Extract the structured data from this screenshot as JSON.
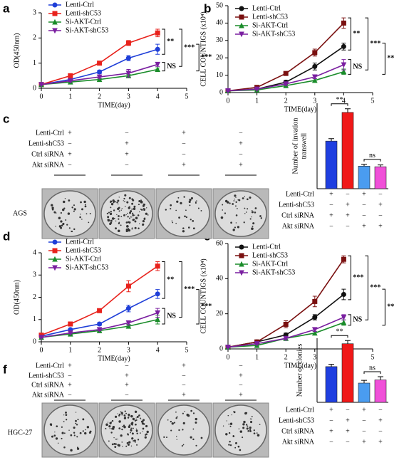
{
  "panel_labels": [
    "a",
    "b",
    "c",
    "d",
    "e",
    "f"
  ],
  "photo_panels": [
    {
      "cell_line": "AGS",
      "rows": [
        "Lenti-Ctrl",
        "Lenti-shC53",
        "Ctrl siRNA",
        "Akt siRNA"
      ],
      "signs": [
        [
          "+",
          "−",
          "+",
          "−"
        ],
        [
          "−",
          "+",
          "−",
          "+"
        ],
        [
          "+",
          "+",
          "−",
          "−"
        ],
        [
          "−",
          "−",
          "+",
          "+"
        ]
      ]
    },
    {
      "cell_line": "HGC-27",
      "rows": [
        "Lenti-Ctrl",
        "Lenti-shC53",
        "Ctrl siRNA",
        "Akt siRNA"
      ],
      "signs": [
        [
          "+",
          "−",
          "+",
          "−"
        ],
        [
          "−",
          "+",
          "−",
          "+"
        ],
        [
          "+",
          "+",
          "−",
          "−"
        ],
        [
          "−",
          "−",
          "+",
          "+"
        ]
      ]
    }
  ],
  "chart_data": [
    {
      "type": "line",
      "xlabel": "TIME(day)",
      "ylabel": "OD(450nm)",
      "x": [
        0,
        1,
        2,
        3,
        4
      ],
      "xlim": [
        0,
        5
      ],
      "xticks": [
        0,
        1,
        2,
        3,
        4,
        5
      ],
      "ylim": [
        0,
        3
      ],
      "yticks": [
        0,
        1,
        2,
        3
      ],
      "series": [
        {
          "name": "Lenti-Ctrl",
          "color": "#1f3fd8",
          "marker": "circle",
          "values": [
            0.15,
            0.35,
            0.65,
            1.2,
            1.55
          ],
          "errors": [
            0.03,
            0.05,
            0.07,
            0.1,
            0.2
          ]
        },
        {
          "name": "Lenti-shC53",
          "color": "#e8221c",
          "marker": "square",
          "values": [
            0.15,
            0.5,
            1.0,
            1.8,
            2.2
          ],
          "errors": [
            0.03,
            0.05,
            0.06,
            0.1,
            0.15
          ]
        },
        {
          "name": "Si-AKT-Ctrl",
          "color": "#1a8c2a",
          "marker": "triangle",
          "values": [
            0.15,
            0.25,
            0.35,
            0.5,
            0.75
          ],
          "errors": [
            0.02,
            0.03,
            0.04,
            0.05,
            0.06
          ]
        },
        {
          "name": "Si-AKT-shC53",
          "color": "#7a1fa0",
          "marker": "triangle-down",
          "values": [
            0.15,
            0.3,
            0.45,
            0.6,
            0.95
          ],
          "errors": [
            0.02,
            0.04,
            0.05,
            0.15,
            0.08
          ]
        }
      ],
      "annotations": [
        "**",
        "***",
        "NS",
        "***"
      ]
    },
    {
      "type": "line",
      "xlabel": "TIME(day)",
      "ylabel": "CELL COUNTIGS (x10⁴)",
      "x": [
        0,
        1,
        2,
        3,
        4
      ],
      "xlim": [
        0,
        5
      ],
      "xticks": [
        0,
        1,
        2,
        3,
        4,
        5
      ],
      "ylim": [
        0,
        50
      ],
      "yticks": [
        0,
        10,
        20,
        30,
        40,
        50
      ],
      "series": [
        {
          "name": "Lenti-Ctrl",
          "color": "#111111",
          "marker": "circle",
          "values": [
            1,
            2,
            6,
            15,
            26.5
          ],
          "errors": [
            0.3,
            0.5,
            1,
            2,
            2
          ]
        },
        {
          "name": "Lenti-shC53",
          "color": "#7a1010",
          "marker": "square",
          "values": [
            1,
            3,
            11,
            23,
            40
          ],
          "errors": [
            0.3,
            0.5,
            1,
            2,
            3
          ]
        },
        {
          "name": "Si-AKT-Ctrl",
          "color": "#1a8c2a",
          "marker": "triangle",
          "values": [
            1,
            1.5,
            4,
            7,
            12
          ],
          "errors": [
            0.3,
            0.4,
            0.6,
            1,
            1.5
          ]
        },
        {
          "name": "Si-AKT-shC53",
          "color": "#7a1fa0",
          "marker": "triangle-down",
          "values": [
            1,
            2,
            5,
            9,
            16
          ],
          "errors": [
            0.3,
            0.4,
            0.8,
            1,
            3
          ]
        }
      ],
      "annotations": [
        "**",
        "***",
        "NS",
        "**"
      ]
    },
    {
      "type": "bar",
      "ylabel": [
        "Number of invation",
        "transwell"
      ],
      "ylim": [
        0,
        140
      ],
      "values": [
        78,
        125,
        37,
        36
      ],
      "errors": [
        4,
        6,
        3,
        3
      ],
      "colors": [
        "#1f3fe0",
        "#f01818",
        "#4a9cf0",
        "#f050d8"
      ],
      "rows": [
        "Lenti-Ctrl",
        "Lenti-shC53",
        "Ctrl siRNA",
        "Akt siRNA"
      ],
      "signs": [
        [
          "+",
          "−",
          "+",
          "−"
        ],
        [
          "−",
          "+",
          "−",
          "+"
        ],
        [
          "+",
          "+",
          "−",
          "−"
        ],
        [
          "−",
          "−",
          "+",
          "+"
        ]
      ],
      "annotations": [
        "**",
        "ns"
      ]
    },
    {
      "type": "line",
      "xlabel": "TIME(day)",
      "ylabel": "OD(450nm)",
      "x": [
        0,
        1,
        2,
        3,
        4
      ],
      "xlim": [
        0,
        5
      ],
      "xticks": [
        0,
        1,
        2,
        3,
        4,
        5
      ],
      "ylim": [
        0,
        4
      ],
      "yticks": [
        0,
        1,
        2,
        3,
        4
      ],
      "series": [
        {
          "name": "Lenti-Ctrl",
          "color": "#1f3fd8",
          "marker": "circle",
          "values": [
            0.25,
            0.55,
            0.8,
            1.5,
            2.15
          ],
          "errors": [
            0.03,
            0.05,
            0.07,
            0.15,
            0.2
          ]
        },
        {
          "name": "Lenti-shC53",
          "color": "#e8221c",
          "marker": "square",
          "values": [
            0.3,
            0.8,
            1.4,
            2.5,
            3.4
          ],
          "errors": [
            0.03,
            0.05,
            0.08,
            0.25,
            0.2
          ]
        },
        {
          "name": "Si-AKT-Ctrl",
          "color": "#1a8c2a",
          "marker": "triangle",
          "values": [
            0.2,
            0.35,
            0.5,
            0.7,
            1.0
          ],
          "errors": [
            0.02,
            0.03,
            0.05,
            0.08,
            0.2
          ]
        },
        {
          "name": "Si-AKT-shC53",
          "color": "#7a1fa0",
          "marker": "triangle-down",
          "values": [
            0.2,
            0.4,
            0.55,
            0.85,
            1.3
          ],
          "errors": [
            0.02,
            0.04,
            0.05,
            0.1,
            0.2
          ]
        }
      ],
      "annotations": [
        "**",
        "***",
        "NS",
        "***"
      ]
    },
    {
      "type": "line",
      "xlabel": "TIME(day)",
      "ylabel": "CELL COUNTIGS (x10⁴)",
      "x": [
        0,
        1,
        2,
        3,
        4
      ],
      "xlim": [
        0,
        5
      ],
      "xticks": [
        0,
        1,
        2,
        3,
        4,
        5
      ],
      "ylim": [
        0,
        60
      ],
      "yticks": [
        0,
        20,
        40,
        60
      ],
      "series": [
        {
          "name": "Lenti-Ctrl",
          "color": "#111111",
          "marker": "circle",
          "values": [
            1,
            4,
            8,
            18,
            31
          ],
          "errors": [
            0.3,
            0.5,
            1,
            1.5,
            3
          ]
        },
        {
          "name": "Lenti-shC53",
          "color": "#7a1010",
          "marker": "square",
          "values": [
            1,
            4,
            14,
            27,
            51
          ],
          "errors": [
            0.3,
            0.6,
            2,
            3,
            2
          ]
        },
        {
          "name": "Si-AKT-Ctrl",
          "color": "#1a8c2a",
          "marker": "triangle",
          "values": [
            1,
            2,
            6,
            9,
            15
          ],
          "errors": [
            0.3,
            0.4,
            0.8,
            1,
            1.5
          ]
        },
        {
          "name": "Si-AKT-shC53",
          "color": "#7a1fa0",
          "marker": "triangle-down",
          "values": [
            1,
            3,
            6,
            11,
            18
          ],
          "errors": [
            0.3,
            0.4,
            0.8,
            1,
            1.5
          ]
        }
      ],
      "annotations": [
        "***",
        "***",
        "NS",
        "**"
      ]
    },
    {
      "type": "bar",
      "ylabel": [
        "Number of clonies"
      ],
      "ylim": [
        0,
        140
      ],
      "values": [
        78,
        128,
        42,
        49
      ],
      "errors": [
        5,
        7,
        6,
        7
      ],
      "colors": [
        "#1f3fe0",
        "#f01818",
        "#4a9cf0",
        "#f050d8"
      ],
      "rows": [
        "Lenti-Ctrl",
        "Lenti-shC53",
        "Ctrl siRNA",
        "Akt siRNA"
      ],
      "signs": [
        [
          "+",
          "−",
          "+",
          "−"
        ],
        [
          "−",
          "+",
          "−",
          "+"
        ],
        [
          "+",
          "+",
          "−",
          "−"
        ],
        [
          "−",
          "−",
          "+",
          "+"
        ]
      ],
      "annotations": [
        "**",
        "ns"
      ]
    }
  ]
}
